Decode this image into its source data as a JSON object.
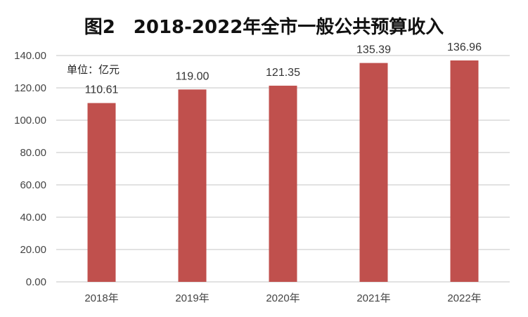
{
  "chart_data": {
    "type": "bar",
    "title": "图2　2018-2022年全市一般公共预算收入",
    "unit_label": "单位：亿元",
    "categories": [
      "2018年",
      "2019年",
      "2020年",
      "2021年",
      "2022年"
    ],
    "values": [
      110.61,
      119.0,
      121.35,
      135.39,
      136.96
    ],
    "value_labels": [
      "110.61",
      "119.00",
      "121.35",
      "135.39",
      "136.96"
    ],
    "ylim": [
      0,
      140
    ],
    "yticks": [
      "0.00",
      "20.00",
      "40.00",
      "60.00",
      "80.00",
      "100.00",
      "120.00",
      "140.00"
    ],
    "grid": true,
    "bar_color": "#C0504D",
    "xlabel": "",
    "ylabel": ""
  }
}
